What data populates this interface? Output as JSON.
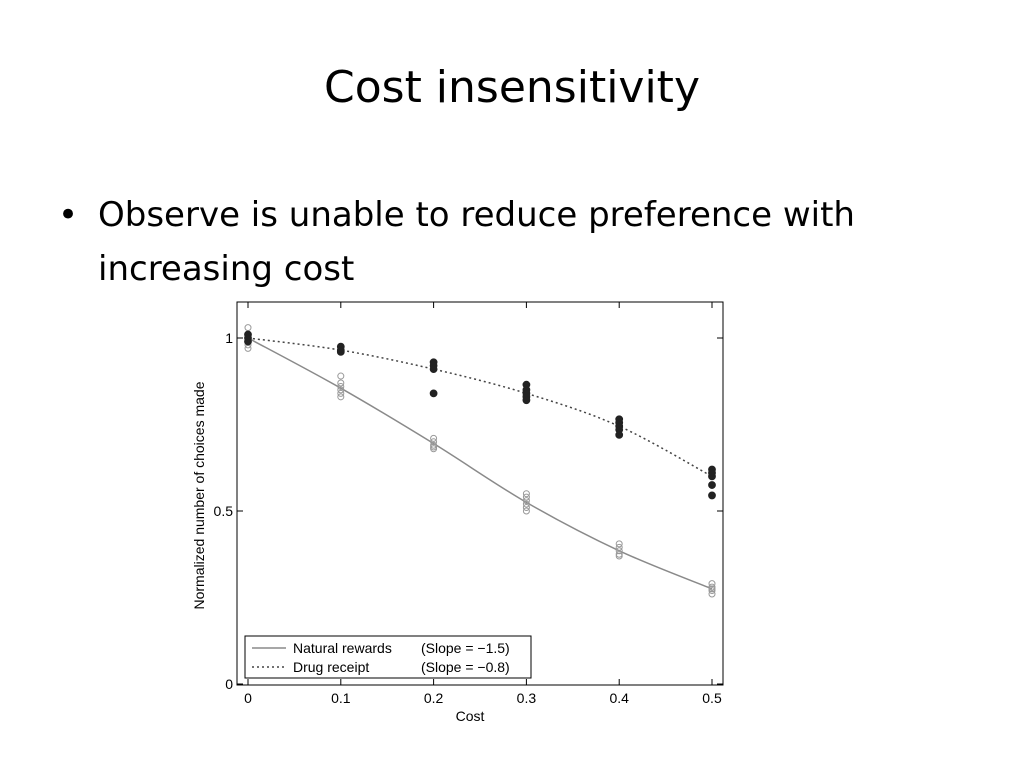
{
  "slide": {
    "title": "Cost insensitivity",
    "bullet_symbol": "•",
    "bullet_text": "Observe is unable to reduce preference with increasing cost"
  },
  "chart_data": {
    "type": "scatter",
    "title": "",
    "xlabel": "Cost",
    "ylabel": "Normalized number of choices made",
    "xlim": [
      0,
      0.5
    ],
    "ylim": [
      0,
      1
    ],
    "xticks": [
      0,
      0.1,
      0.2,
      0.3,
      0.4,
      0.5
    ],
    "xtick_labels": [
      "0",
      "0.1",
      "0.2",
      "0.3",
      "0.4",
      "0.5"
    ],
    "yticks": [
      0,
      0.5,
      1
    ],
    "ytick_labels": [
      "0",
      "0.5",
      "1"
    ],
    "grid": false,
    "legend_position": "bottom-left",
    "legend": [
      {
        "label": "Natural rewards",
        "slope_label": "(Slope = −1.5)",
        "style": "solid"
      },
      {
        "label": "Drug receipt",
        "slope_label": "(Slope = −0.8)",
        "style": "dotted"
      }
    ],
    "series": [
      {
        "line_style": "solid",
        "marker": "open-circle",
        "color": "#888888",
        "curve": {
          "x": [
            0,
            0.1,
            0.2,
            0.3,
            0.4,
            0.5
          ],
          "y": [
            1.0,
            0.855,
            0.695,
            0.525,
            0.385,
            0.275
          ]
        },
        "points": [
          [
            0,
            1.03
          ],
          [
            0,
            1.01
          ],
          [
            0,
            1.0
          ],
          [
            0,
            0.99
          ],
          [
            0,
            0.98
          ],
          [
            0,
            0.97
          ],
          [
            0.1,
            0.89
          ],
          [
            0.1,
            0.87
          ],
          [
            0.1,
            0.86
          ],
          [
            0.1,
            0.85
          ],
          [
            0.1,
            0.84
          ],
          [
            0.1,
            0.83
          ],
          [
            0.2,
            0.71
          ],
          [
            0.2,
            0.7
          ],
          [
            0.2,
            0.69
          ],
          [
            0.2,
            0.685
          ],
          [
            0.2,
            0.68
          ],
          [
            0.3,
            0.55
          ],
          [
            0.3,
            0.54
          ],
          [
            0.3,
            0.53
          ],
          [
            0.3,
            0.52
          ],
          [
            0.3,
            0.51
          ],
          [
            0.3,
            0.5
          ],
          [
            0.4,
            0.405
          ],
          [
            0.4,
            0.395
          ],
          [
            0.4,
            0.385
          ],
          [
            0.4,
            0.375
          ],
          [
            0.4,
            0.37
          ],
          [
            0.5,
            0.29
          ],
          [
            0.5,
            0.28
          ],
          [
            0.5,
            0.275
          ],
          [
            0.5,
            0.27
          ],
          [
            0.5,
            0.26
          ]
        ]
      },
      {
        "line_style": "dotted",
        "marker": "filled-circle",
        "color": "#222222",
        "curve": {
          "x": [
            0,
            0.1,
            0.2,
            0.3,
            0.4,
            0.5
          ],
          "y": [
            1.0,
            0.965,
            0.91,
            0.84,
            0.745,
            0.6
          ]
        },
        "points": [
          [
            0,
            1.01
          ],
          [
            0,
            1.0
          ],
          [
            0,
            0.99
          ],
          [
            0.1,
            0.975
          ],
          [
            0.1,
            0.965
          ],
          [
            0.1,
            0.96
          ],
          [
            0.2,
            0.93
          ],
          [
            0.2,
            0.92
          ],
          [
            0.2,
            0.91
          ],
          [
            0.2,
            0.84
          ],
          [
            0.3,
            0.865
          ],
          [
            0.3,
            0.85
          ],
          [
            0.3,
            0.84
          ],
          [
            0.3,
            0.83
          ],
          [
            0.3,
            0.82
          ],
          [
            0.4,
            0.765
          ],
          [
            0.4,
            0.755
          ],
          [
            0.4,
            0.745
          ],
          [
            0.4,
            0.735
          ],
          [
            0.4,
            0.72
          ],
          [
            0.5,
            0.62
          ],
          [
            0.5,
            0.61
          ],
          [
            0.5,
            0.6
          ],
          [
            0.5,
            0.575
          ],
          [
            0.5,
            0.545
          ]
        ]
      }
    ]
  }
}
